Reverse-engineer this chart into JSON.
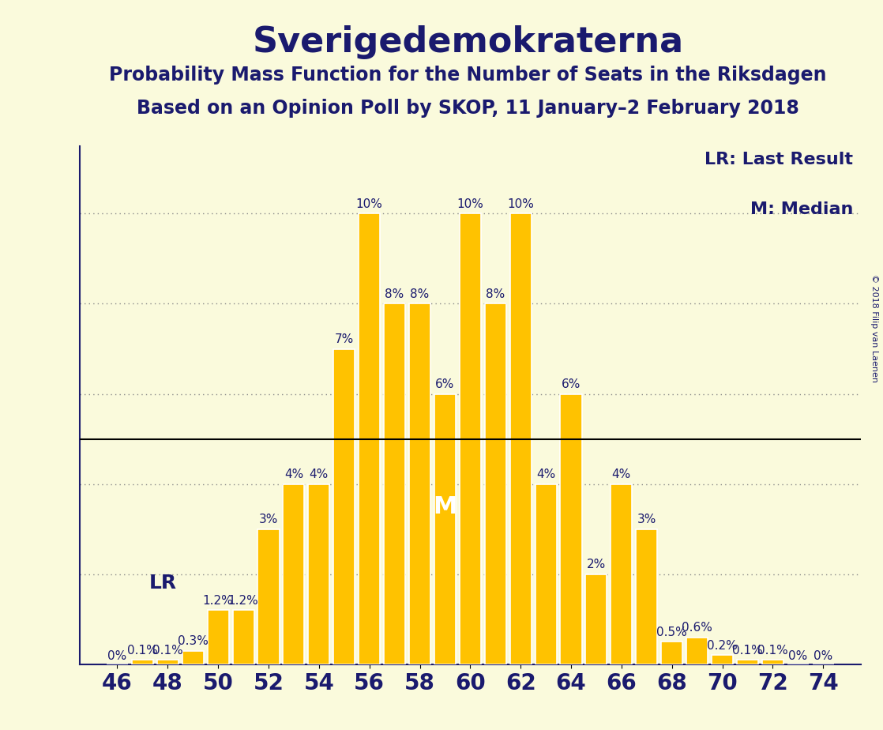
{
  "title": "Sverigedemokraterna",
  "subtitle1": "Probability Mass Function for the Number of Seats in the Riksdagen",
  "subtitle2": "Based on an Opinion Poll by SKOP, 11 January–2 February 2018",
  "copyright": "© 2018 Filip van Laenen",
  "seats": [
    46,
    47,
    48,
    49,
    50,
    51,
    52,
    53,
    54,
    55,
    56,
    57,
    58,
    59,
    60,
    61,
    62,
    63,
    64,
    65,
    66,
    67,
    68,
    69,
    70,
    71,
    72,
    73,
    74
  ],
  "probabilities": [
    0.0,
    0.1,
    0.1,
    0.3,
    1.2,
    1.2,
    3.0,
    4.0,
    4.0,
    7.0,
    10.0,
    8.0,
    8.0,
    6.0,
    10.0,
    8.0,
    10.0,
    4.0,
    6.0,
    2.0,
    4.0,
    3.0,
    0.5,
    0.6,
    0.2,
    0.1,
    0.1,
    0.0,
    0.0
  ],
  "bar_color": "#FFC200",
  "bar_edge_color": "#FFFFFF",
  "background_color": "#FAFADC",
  "text_color": "#1A1A6E",
  "grid_color": "#888888",
  "five_pct_line_color": "#000000",
  "median_seat": 59,
  "last_result_seat": 49,
  "ylim": [
    0,
    11.5
  ],
  "legend_lr": "LR: Last Result",
  "legend_m": "M: Median",
  "title_fontsize": 32,
  "subtitle_fontsize": 17,
  "label_fontsize": 11,
  "tick_fontsize": 20,
  "ylabel_fontsize": 22,
  "legend_fontsize": 16,
  "lr_fontsize": 18,
  "m_fontsize": 22,
  "copyright_fontsize": 8
}
